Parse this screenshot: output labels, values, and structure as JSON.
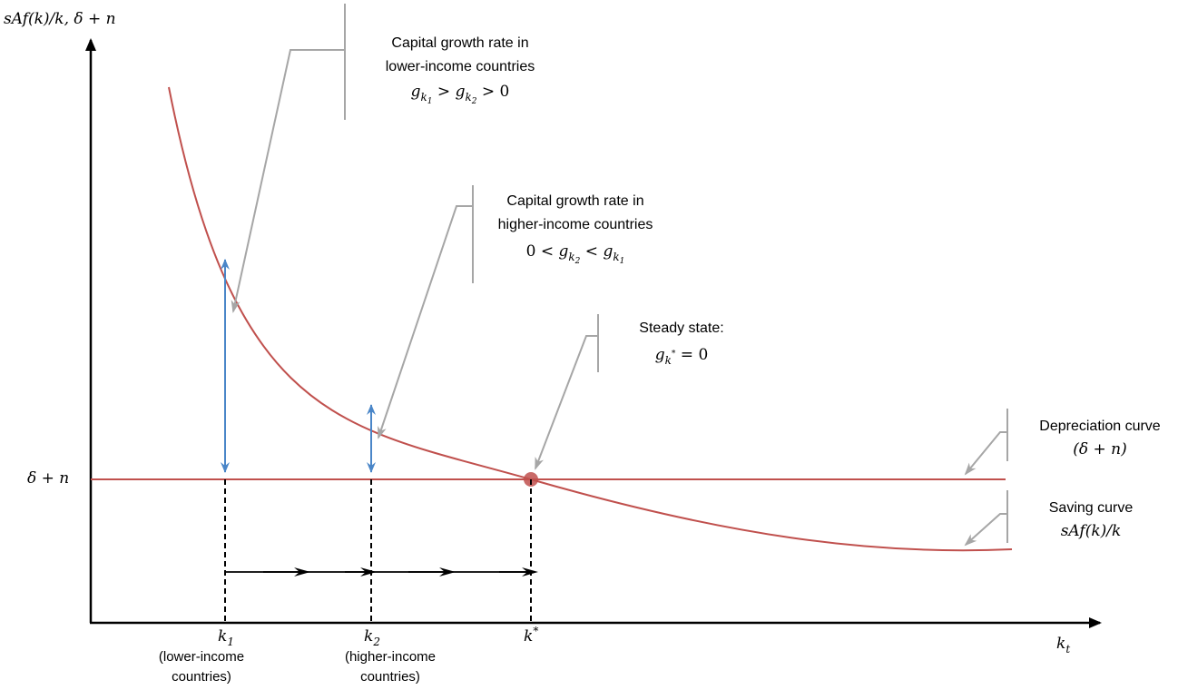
{
  "axes": {
    "y_label": "sAf(k)/k, δ + n",
    "x_label": "k",
    "x_label_sub": "t",
    "level_label": "δ + n"
  },
  "ticks": [
    {
      "main": "k",
      "sub": "1",
      "sup": "",
      "desc1": "(lower-income",
      "desc2": "countries)"
    },
    {
      "main": "k",
      "sub": "2",
      "sup": "",
      "desc1": "(higher-income",
      "desc2": "countries)"
    },
    {
      "main": "k",
      "sub": "",
      "sup": "*",
      "desc1": "",
      "desc2": ""
    }
  ],
  "annotations": {
    "lower": {
      "line1": "Capital growth rate in",
      "line2": "lower-income countries",
      "formula": {
        "g1": "g",
        "s1": "k",
        "ss1": "1",
        "op1": " > ",
        "g2": "g",
        "s2": "k",
        "ss2": "2",
        "op2": " > 0"
      }
    },
    "higher": {
      "line1": "Capital growth rate in",
      "line2": "higher-income countries",
      "formula": {
        "pre": "0 < ",
        "g1": "g",
        "s1": "k",
        "ss1": "2",
        "op1": " < ",
        "g2": "g",
        "s2": "k",
        "ss2": "1"
      }
    },
    "steady": {
      "line1": "Steady state:",
      "formula": {
        "g": "g",
        "s": "k",
        "ss": "*",
        "post": " = 0"
      }
    },
    "depreciation": {
      "line1": "Depreciation curve",
      "line2": "(δ + n)"
    },
    "saving": {
      "line1": "Saving curve",
      "line2": "sAf(k)/k"
    }
  },
  "colors": {
    "curve": "#c0504d",
    "arrow_blue": "#4a86c8",
    "callout": "#a6a6a6",
    "axis": "#000000"
  }
}
